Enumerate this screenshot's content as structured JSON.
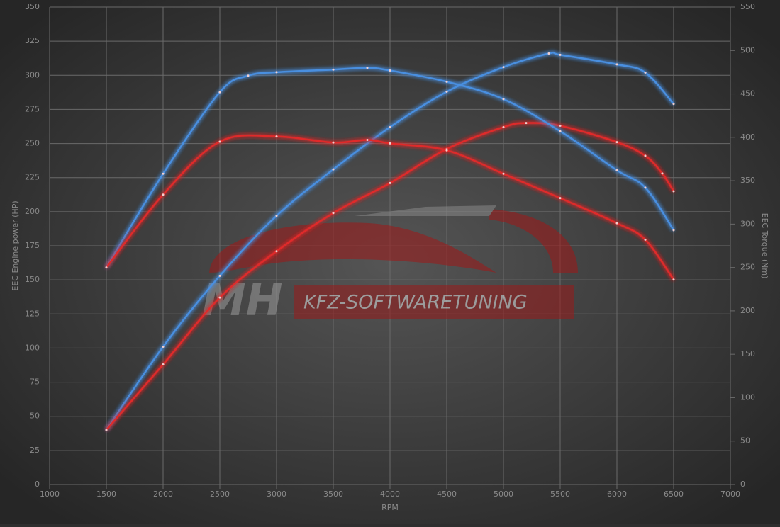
{
  "chart_data": {
    "type": "line",
    "x_label": "RPM",
    "y_label": "EEC Engine power (HP)",
    "y2_label": "EEC Torque (Nm)",
    "watermark": {
      "brand": "MH",
      "text": "KFZ-SOFTWARETUNING"
    },
    "xlim": [
      1000,
      7000
    ],
    "xticks": [
      1000,
      1500,
      2000,
      2500,
      3000,
      3500,
      4000,
      4500,
      5000,
      5500,
      6000,
      6500,
      7000
    ],
    "ylim": [
      0,
      350
    ],
    "yticks": [
      0,
      25,
      50,
      75,
      100,
      125,
      150,
      175,
      200,
      225,
      250,
      275,
      300,
      325,
      350
    ],
    "y2lim": [
      0,
      550
    ],
    "y2ticks": [
      0,
      50,
      100,
      150,
      200,
      250,
      300,
      350,
      400,
      450,
      500,
      550
    ],
    "grid": true,
    "series": [
      {
        "color": "#4a8fe0",
        "x": [
          1500,
          2000,
          2500,
          3000,
          3500,
          4000,
          4500,
          5000,
          5400,
          5500,
          6000,
          6250,
          6500
        ],
        "values": [
          40,
          101,
          153,
          197,
          231,
          262,
          288,
          306,
          316,
          315,
          308,
          302,
          279
        ]
      },
      {
        "color": "#e02a2a",
        "x": [
          1500,
          2000,
          2500,
          3000,
          3500,
          4000,
          4500,
          5000,
          5200,
          5500,
          6000,
          6250,
          6400,
          6500
        ],
        "values": [
          40,
          88,
          137,
          171,
          199,
          221,
          246,
          262,
          265,
          263,
          251,
          241,
          228,
          215
        ]
      },
      {
        "color": "#4a8fe0",
        "axis": "y2",
        "x": [
          1500,
          2000,
          2500,
          2750,
          3000,
          3500,
          3800,
          4000,
          4500,
          5000,
          5500,
          6000,
          6250,
          6500
        ],
        "values": [
          250,
          358,
          452,
          471,
          475,
          478,
          480,
          477,
          464,
          444,
          407,
          362,
          342,
          293
        ]
      },
      {
        "color": "#e02a2a",
        "axis": "y2",
        "x": [
          1500,
          2000,
          2500,
          3000,
          3500,
          3800,
          4000,
          4500,
          5000,
          5500,
          6000,
          6250,
          6500
        ],
        "values": [
          250,
          334,
          395,
          401,
          394,
          397,
          393,
          385,
          358,
          330,
          301,
          282,
          236
        ]
      }
    ]
  }
}
